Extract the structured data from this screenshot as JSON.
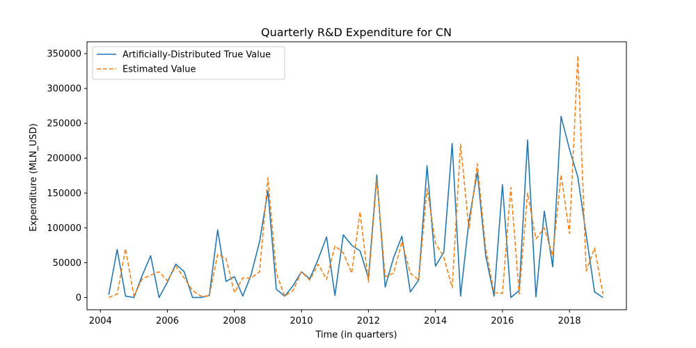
{
  "chart_data": {
    "type": "line",
    "title": "Quarterly R&D Expenditure for CN",
    "xlabel": "Time (in quarters)",
    "ylabel": "Expenditure (MLN_USD)",
    "xlim": [
      2003.6,
      2019.7
    ],
    "ylim": [
      -17500,
      367000
    ],
    "xticks": [
      2004,
      2006,
      2008,
      2010,
      2012,
      2014,
      2016,
      2018
    ],
    "yticks": [
      0,
      50000,
      100000,
      150000,
      200000,
      250000,
      300000,
      350000
    ],
    "grid": false,
    "legend_position": "top-left",
    "series": [
      {
        "name": "Artificially-Distributed True Value",
        "color": "#1f77b4",
        "style": "solid",
        "x": [
          2004.25,
          2004.5,
          2004.75,
          2005.0,
          2005.25,
          2005.5,
          2005.75,
          2006.0,
          2006.25,
          2006.5,
          2006.75,
          2007.0,
          2007.25,
          2007.5,
          2007.75,
          2008.0,
          2008.25,
          2008.5,
          2008.75,
          2009.0,
          2009.25,
          2009.5,
          2009.75,
          2010.0,
          2010.25,
          2010.5,
          2010.75,
          2011.0,
          2011.25,
          2011.5,
          2011.75,
          2012.0,
          2012.25,
          2012.5,
          2012.75,
          2013.0,
          2013.25,
          2013.5,
          2013.75,
          2014.0,
          2014.25,
          2014.5,
          2014.75,
          2015.0,
          2015.25,
          2015.5,
          2015.75,
          2016.0,
          2016.25,
          2016.5,
          2016.75,
          2017.0,
          2017.25,
          2017.5,
          2017.75,
          2018.0,
          2018.25,
          2018.5,
          2018.75,
          2019.0
        ],
        "y": [
          4000,
          69000,
          2000,
          0,
          32000,
          60000,
          0,
          22000,
          48000,
          37000,
          0,
          0,
          3000,
          97000,
          23000,
          30000,
          2000,
          33000,
          80000,
          153000,
          12000,
          2000,
          17000,
          37000,
          27000,
          55000,
          87000,
          3000,
          90000,
          75000,
          67000,
          28000,
          176000,
          15000,
          57000,
          88000,
          8000,
          25000,
          189000,
          45000,
          65000,
          221000,
          2000,
          110000,
          180000,
          60000,
          2000,
          162000,
          0,
          10000,
          226000,
          1000,
          124000,
          44000,
          260000,
          213000,
          173000,
          90000,
          8000,
          0
        ]
      },
      {
        "name": "Estimated Value",
        "color": "#ff7f0e",
        "style": "dashed",
        "x": [
          2004.25,
          2004.5,
          2004.75,
          2005.0,
          2005.25,
          2005.5,
          2005.75,
          2006.0,
          2006.25,
          2006.5,
          2006.75,
          2007.0,
          2007.25,
          2007.5,
          2007.75,
          2008.0,
          2008.25,
          2008.5,
          2008.75,
          2009.0,
          2009.25,
          2009.5,
          2009.75,
          2010.0,
          2010.25,
          2010.5,
          2010.75,
          2011.0,
          2011.25,
          2011.5,
          2011.75,
          2012.0,
          2012.25,
          2012.5,
          2012.75,
          2013.0,
          2013.25,
          2013.5,
          2013.75,
          2014.0,
          2014.25,
          2014.5,
          2014.75,
          2015.0,
          2015.25,
          2015.5,
          2015.75,
          2016.0,
          2016.25,
          2016.5,
          2016.75,
          2017.0,
          2017.25,
          2017.5,
          2017.75,
          2018.0,
          2018.25,
          2018.5,
          2018.75,
          2019.0
        ],
        "y": [
          0,
          5000,
          70000,
          2000,
          27000,
          32000,
          37000,
          24000,
          45000,
          28000,
          10000,
          2000,
          2000,
          62000,
          56000,
          7000,
          28000,
          28000,
          37000,
          172000,
          35000,
          2000,
          10000,
          37000,
          25000,
          48000,
          26000,
          74000,
          64000,
          35000,
          123000,
          22000,
          170000,
          30000,
          35000,
          80000,
          35000,
          25000,
          157000,
          78000,
          58000,
          14000,
          220000,
          98000,
          192000,
          70000,
          7000,
          6000,
          158000,
          5000,
          150000,
          84000,
          100000,
          60000,
          176000,
          92000,
          347000,
          38000,
          71000,
          5000
        ]
      }
    ]
  }
}
